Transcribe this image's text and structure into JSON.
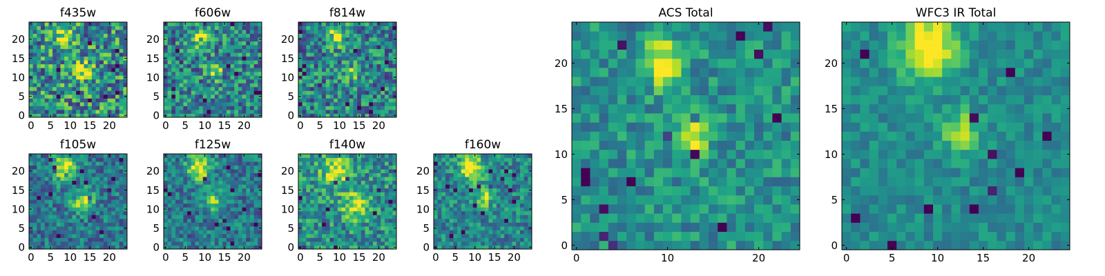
{
  "figure": {
    "colormap": "viridis",
    "colors": {
      "viridis_low": "#440154",
      "viridis_mid": "#21918c",
      "viridis_high": "#fde725",
      "frame": "#000000",
      "background": "#ffffff"
    }
  },
  "chart_data": [
    {
      "id": "f435w",
      "type": "heatmap",
      "title": "f435w",
      "size": 25,
      "xlim": [
        0,
        24
      ],
      "ylim": [
        0,
        24
      ],
      "xticks": [
        "0",
        "5",
        "10",
        "15",
        "20"
      ],
      "yticks": [
        "0",
        "5",
        "10",
        "15",
        "20"
      ],
      "grid": false,
      "sources": [
        {
          "x": 9,
          "y": 21,
          "amp": 0.5,
          "sx": 1.6,
          "sy": 2.0
        },
        {
          "x": 13,
          "y": 12,
          "amp": 0.45,
          "sx": 1.8,
          "sy": 1.6
        }
      ],
      "base": 0.5,
      "noise": 0.35
    },
    {
      "id": "f606w",
      "type": "heatmap",
      "title": "f606w",
      "size": 25,
      "xlim": [
        0,
        24
      ],
      "ylim": [
        0,
        24
      ],
      "xticks": [
        "0",
        "5",
        "10",
        "15",
        "20"
      ],
      "yticks": [
        "0",
        "5",
        "10",
        "15",
        "20"
      ],
      "grid": false,
      "sources": [
        {
          "x": 9,
          "y": 20,
          "amp": 0.55,
          "sx": 1.4,
          "sy": 1.8
        },
        {
          "x": 12.5,
          "y": 12,
          "amp": 0.5,
          "sx": 1.2,
          "sy": 1.6
        }
      ],
      "base": 0.45,
      "noise": 0.3
    },
    {
      "id": "f814w",
      "type": "heatmap",
      "title": "f814w",
      "size": 25,
      "xlim": [
        0,
        24
      ],
      "ylim": [
        0,
        24
      ],
      "xticks": [
        "0",
        "5",
        "10",
        "15",
        "20"
      ],
      "yticks": [
        "0",
        "5",
        "10",
        "15",
        "20"
      ],
      "grid": false,
      "sources": [
        {
          "x": 9,
          "y": 21,
          "amp": 0.6,
          "sx": 1.6,
          "sy": 1.8
        },
        {
          "x": 13,
          "y": 12,
          "amp": 0.45,
          "sx": 1.4,
          "sy": 1.6
        }
      ],
      "base": 0.45,
      "noise": 0.3
    },
    {
      "id": "f105w",
      "type": "heatmap",
      "title": "f105w",
      "size": 25,
      "xlim": [
        0,
        24
      ],
      "ylim": [
        0,
        24
      ],
      "xticks": [
        "0",
        "5",
        "10",
        "15",
        "20"
      ],
      "yticks": [
        "0",
        "5",
        "10",
        "15",
        "20"
      ],
      "grid": false,
      "sources": [
        {
          "x": 8.5,
          "y": 21,
          "amp": 0.55,
          "sx": 2.0,
          "sy": 2.4
        },
        {
          "x": 13,
          "y": 12,
          "amp": 0.55,
          "sx": 2.0,
          "sy": 2.0
        }
      ],
      "base": 0.4,
      "noise": 0.22
    },
    {
      "id": "f125w",
      "type": "heatmap",
      "title": "f125w",
      "size": 25,
      "xlim": [
        0,
        24
      ],
      "ylim": [
        0,
        24
      ],
      "xticks": [
        "0",
        "5",
        "10",
        "15",
        "20"
      ],
      "yticks": [
        "0",
        "5",
        "10",
        "15",
        "20"
      ],
      "grid": false,
      "sources": [
        {
          "x": 8.5,
          "y": 21,
          "amp": 0.6,
          "sx": 2.2,
          "sy": 2.4
        },
        {
          "x": 12.5,
          "y": 12,
          "amp": 0.45,
          "sx": 1.4,
          "sy": 2.0
        }
      ],
      "base": 0.4,
      "noise": 0.22
    },
    {
      "id": "f140w",
      "type": "heatmap",
      "title": "f140w",
      "size": 25,
      "xlim": [
        0,
        24
      ],
      "ylim": [
        0,
        24
      ],
      "xticks": [
        "0",
        "5",
        "10",
        "15",
        "20"
      ],
      "yticks": [
        "0",
        "5",
        "10",
        "15",
        "20"
      ],
      "grid": false,
      "sources": [
        {
          "x": 9,
          "y": 20,
          "amp": 0.5,
          "sx": 2.4,
          "sy": 2.6
        },
        {
          "x": 14,
          "y": 11,
          "amp": 0.45,
          "sx": 2.4,
          "sy": 2.4
        }
      ],
      "base": 0.5,
      "noise": 0.25
    },
    {
      "id": "f160w",
      "type": "heatmap",
      "title": "f160w",
      "size": 25,
      "xlim": [
        0,
        24
      ],
      "ylim": [
        0,
        24
      ],
      "xticks": [
        "0",
        "5",
        "10",
        "15",
        "20"
      ],
      "yticks": [
        "0",
        "5",
        "10",
        "15",
        "20"
      ],
      "grid": false,
      "sources": [
        {
          "x": 9,
          "y": 21,
          "amp": 0.65,
          "sx": 2.0,
          "sy": 2.4
        },
        {
          "x": 12.5,
          "y": 13,
          "amp": 0.4,
          "sx": 1.4,
          "sy": 1.8
        }
      ],
      "base": 0.45,
      "noise": 0.22
    },
    {
      "id": "acs-total",
      "type": "heatmap",
      "title": "ACS Total",
      "size": 25,
      "xlim": [
        0,
        24
      ],
      "ylim": [
        0,
        24
      ],
      "xticks": [
        "0",
        "10",
        "20"
      ],
      "yticks": [
        "0",
        "5",
        "10",
        "15",
        "20"
      ],
      "grid": false,
      "sources": [
        {
          "x": 9.5,
          "y": 20,
          "amp": 0.55,
          "sx": 1.3,
          "sy": 1.8
        },
        {
          "x": 12.5,
          "y": 12,
          "amp": 0.45,
          "sx": 1.3,
          "sy": 1.6
        }
      ],
      "base": 0.5,
      "noise": 0.18
    },
    {
      "id": "wfc3-ir-total",
      "type": "heatmap",
      "title": "WFC3 IR Total",
      "size": 25,
      "xlim": [
        0,
        24
      ],
      "ylim": [
        0,
        24
      ],
      "xticks": [
        "0",
        "5",
        "10",
        "15",
        "20"
      ],
      "yticks": [
        "0",
        "5",
        "10",
        "15",
        "20"
      ],
      "grid": false,
      "sources": [
        {
          "x": 9,
          "y": 22,
          "amp": 0.6,
          "sx": 2.2,
          "sy": 2.6
        },
        {
          "x": 12.5,
          "y": 12.5,
          "amp": 0.4,
          "sx": 1.3,
          "sy": 1.6
        }
      ],
      "base": 0.48,
      "noise": 0.12
    }
  ]
}
